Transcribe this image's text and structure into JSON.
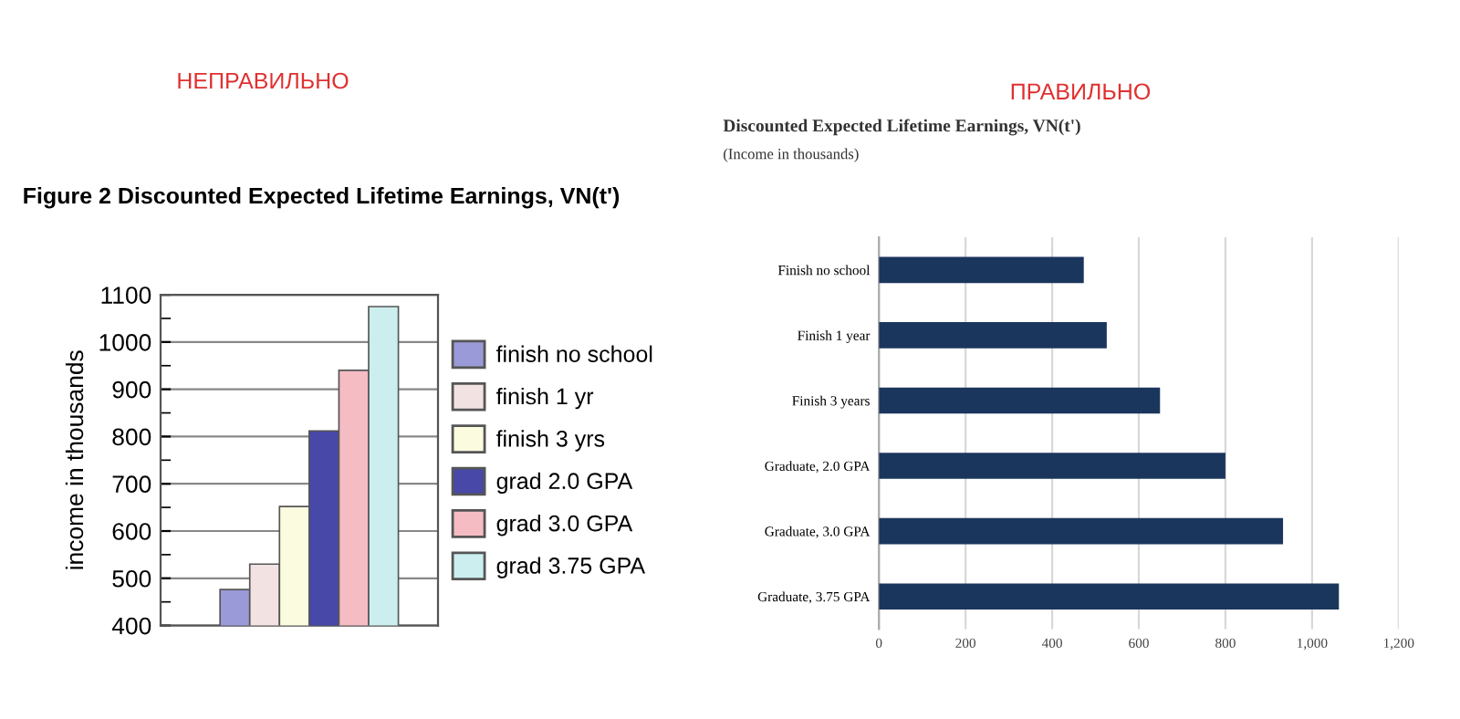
{
  "chart_data": [
    {
      "type": "bar",
      "title": "Figure 2 Discounted Expected Lifetime Earnings, VN(t')",
      "ylabel": "income in thousands",
      "annotations": [
        "НЕПРАВИЛЬНО"
      ],
      "categories": [
        null
      ],
      "series": [
        {
          "name": "finish no school",
          "color": "#9a9ad8",
          "values": [
            476
          ]
        },
        {
          "name": "finish 1 yr",
          "color": "#f2e2e2",
          "values": [
            530
          ]
        },
        {
          "name": "finish 3 yrs",
          "color": "#fbfbe0",
          "values": [
            652
          ]
        },
        {
          "name": "grad 2.0 GPA",
          "color": "#4848a8",
          "values": [
            812
          ]
        },
        {
          "name": "grad 3.0 GPA",
          "color": "#f5bcc4",
          "values": [
            940
          ]
        },
        {
          "name": "grad 3.75 GPA",
          "color": "#cdeeee",
          "values": [
            1075
          ]
        }
      ],
      "ylim": [
        400,
        1100
      ],
      "yticks": [
        400,
        500,
        600,
        700,
        800,
        900,
        1000,
        1100
      ],
      "grid": "y",
      "legend": "right"
    },
    {
      "type": "bar",
      "orientation": "horizontal",
      "title": "Discounted Expected Lifetime Earnings, VN(t')",
      "subtitle": "(Income in thousands)",
      "annotations": [
        "ПРАВИЛЬНО"
      ],
      "categories": [
        "Finish no school",
        "Finish 1 year",
        "Finish 3 years",
        "Graduate, 2.0 GPA",
        "Graduate, 3.0 GPA",
        "Graduate, 3.75 GPA"
      ],
      "values": [
        473,
        526,
        649,
        800,
        933,
        1062
      ],
      "color": "#1b365d",
      "xlim": [
        0,
        1200
      ],
      "xticks": [
        0,
        200,
        400,
        600,
        800,
        {
          "value": 1000,
          "label": "1,000"
        },
        {
          "value": 1200,
          "label": "1,200"
        }
      ],
      "grid": "x"
    }
  ]
}
